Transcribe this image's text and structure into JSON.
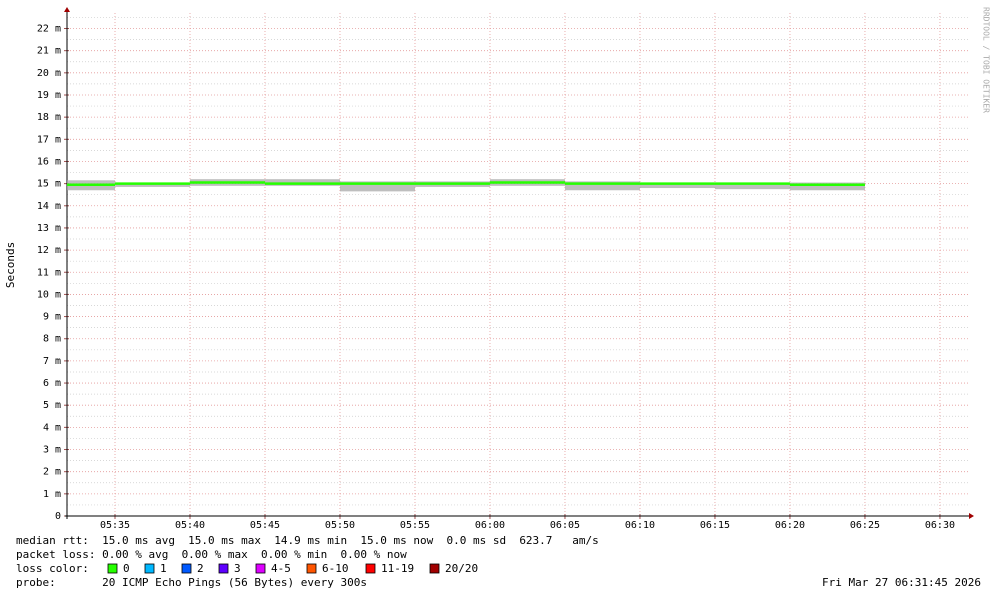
{
  "chart_data": {
    "type": "line",
    "y_label": "Seconds",
    "watermark": "RRDTOOL / TOBI OETIKER",
    "x": [
      335,
      340,
      345,
      350,
      355,
      360,
      365,
      370,
      375,
      380,
      385
    ],
    "xlim": [
      331.8,
      391.87
    ],
    "xticks": [
      {
        "value": 335,
        "label": "05:35"
      },
      {
        "value": 340,
        "label": "05:40"
      },
      {
        "value": 345,
        "label": "05:45"
      },
      {
        "value": 350,
        "label": "05:50"
      },
      {
        "value": 355,
        "label": "05:55"
      },
      {
        "value": 360,
        "label": "06:00"
      },
      {
        "value": 365,
        "label": "06:05"
      },
      {
        "value": 370,
        "label": "06:10"
      },
      {
        "value": 375,
        "label": "06:15"
      },
      {
        "value": 380,
        "label": "06:20"
      },
      {
        "value": 385,
        "label": "06:25"
      },
      {
        "value": 390,
        "label": "06:30"
      }
    ],
    "ylim": [
      0,
      22.7
    ],
    "yticks": [
      0,
      {
        "value": 1,
        "label": "1 m"
      },
      {
        "value": 2,
        "label": "2 m"
      },
      {
        "value": 3,
        "label": "3 m"
      },
      {
        "value": 4,
        "label": "4 m"
      },
      {
        "value": 5,
        "label": "5 m"
      },
      {
        "value": 6,
        "label": "6 m"
      },
      {
        "value": 7,
        "label": "7 m"
      },
      {
        "value": 8,
        "label": "8 m"
      },
      {
        "value": 9,
        "label": "9 m"
      },
      {
        "value": 10,
        "label": "10 m"
      },
      {
        "value": 11,
        "label": "11 m"
      },
      {
        "value": 12,
        "label": "12 m"
      },
      {
        "value": 13,
        "label": "13 m"
      },
      {
        "value": 14,
        "label": "14 m"
      },
      {
        "value": 15,
        "label": "15 m"
      },
      {
        "value": 16,
        "label": "16 m"
      },
      {
        "value": 17,
        "label": "17 m"
      },
      {
        "value": 18,
        "label": "18 m"
      },
      {
        "value": 19,
        "label": "19 m"
      },
      {
        "value": 20,
        "label": "20 m"
      },
      {
        "value": 21,
        "label": "21 m"
      },
      {
        "value": 22,
        "label": "22 m"
      }
    ],
    "minor_yticks": [
      0.5,
      1.5,
      2.5,
      3.5,
      4.5,
      5.5,
      6.5,
      7.5,
      8.5,
      9.5,
      10.5,
      11.5,
      12.5,
      13.5,
      14.5,
      15.5,
      16.5,
      17.5,
      18.5,
      19.5,
      20.5,
      21.5,
      22.5
    ],
    "grid": true,
    "median": {
      "color": "#26ff00",
      "values": [
        14.95,
        15.0,
        15.05,
        15.0,
        15.0,
        15.0,
        15.05,
        15.0,
        15.0,
        15.0,
        14.95
      ]
    },
    "smoke": {
      "color": "#a8a8a8",
      "low": [
        14.7,
        14.85,
        14.9,
        14.9,
        14.65,
        14.85,
        14.9,
        14.7,
        14.8,
        14.75,
        14.7
      ],
      "high": [
        15.15,
        15.05,
        15.2,
        15.2,
        15.1,
        15.1,
        15.2,
        15.1,
        15.05,
        15.05,
        15.05
      ]
    },
    "stats": [
      "median rtt:  15.0 ms avg  15.0 ms max  14.9 ms min  15.0 ms now  0.0 ms sd  623.7   am/s",
      "packet loss: 0.00 % avg  0.00 % max  0.00 % min  0.00 % now"
    ],
    "loss_label": "loss color:",
    "loss_colors": [
      {
        "label": "0",
        "color": "#26ff00"
      },
      {
        "label": "1",
        "color": "#00b8ff"
      },
      {
        "label": "2",
        "color": "#0059ff"
      },
      {
        "label": "3",
        "color": "#5e00ff"
      },
      {
        "label": "4-5",
        "color": "#dd00ff"
      },
      {
        "label": "6-10",
        "color": "#ff5500"
      },
      {
        "label": "11-19",
        "color": "#ff0000"
      },
      {
        "label": "20/20",
        "color": "#a10000"
      }
    ],
    "probe": "probe:       20 ICMP Echo Pings (56 Bytes) every 300s",
    "timestamp": "Fri Mar 27 06:31:45 2026"
  }
}
